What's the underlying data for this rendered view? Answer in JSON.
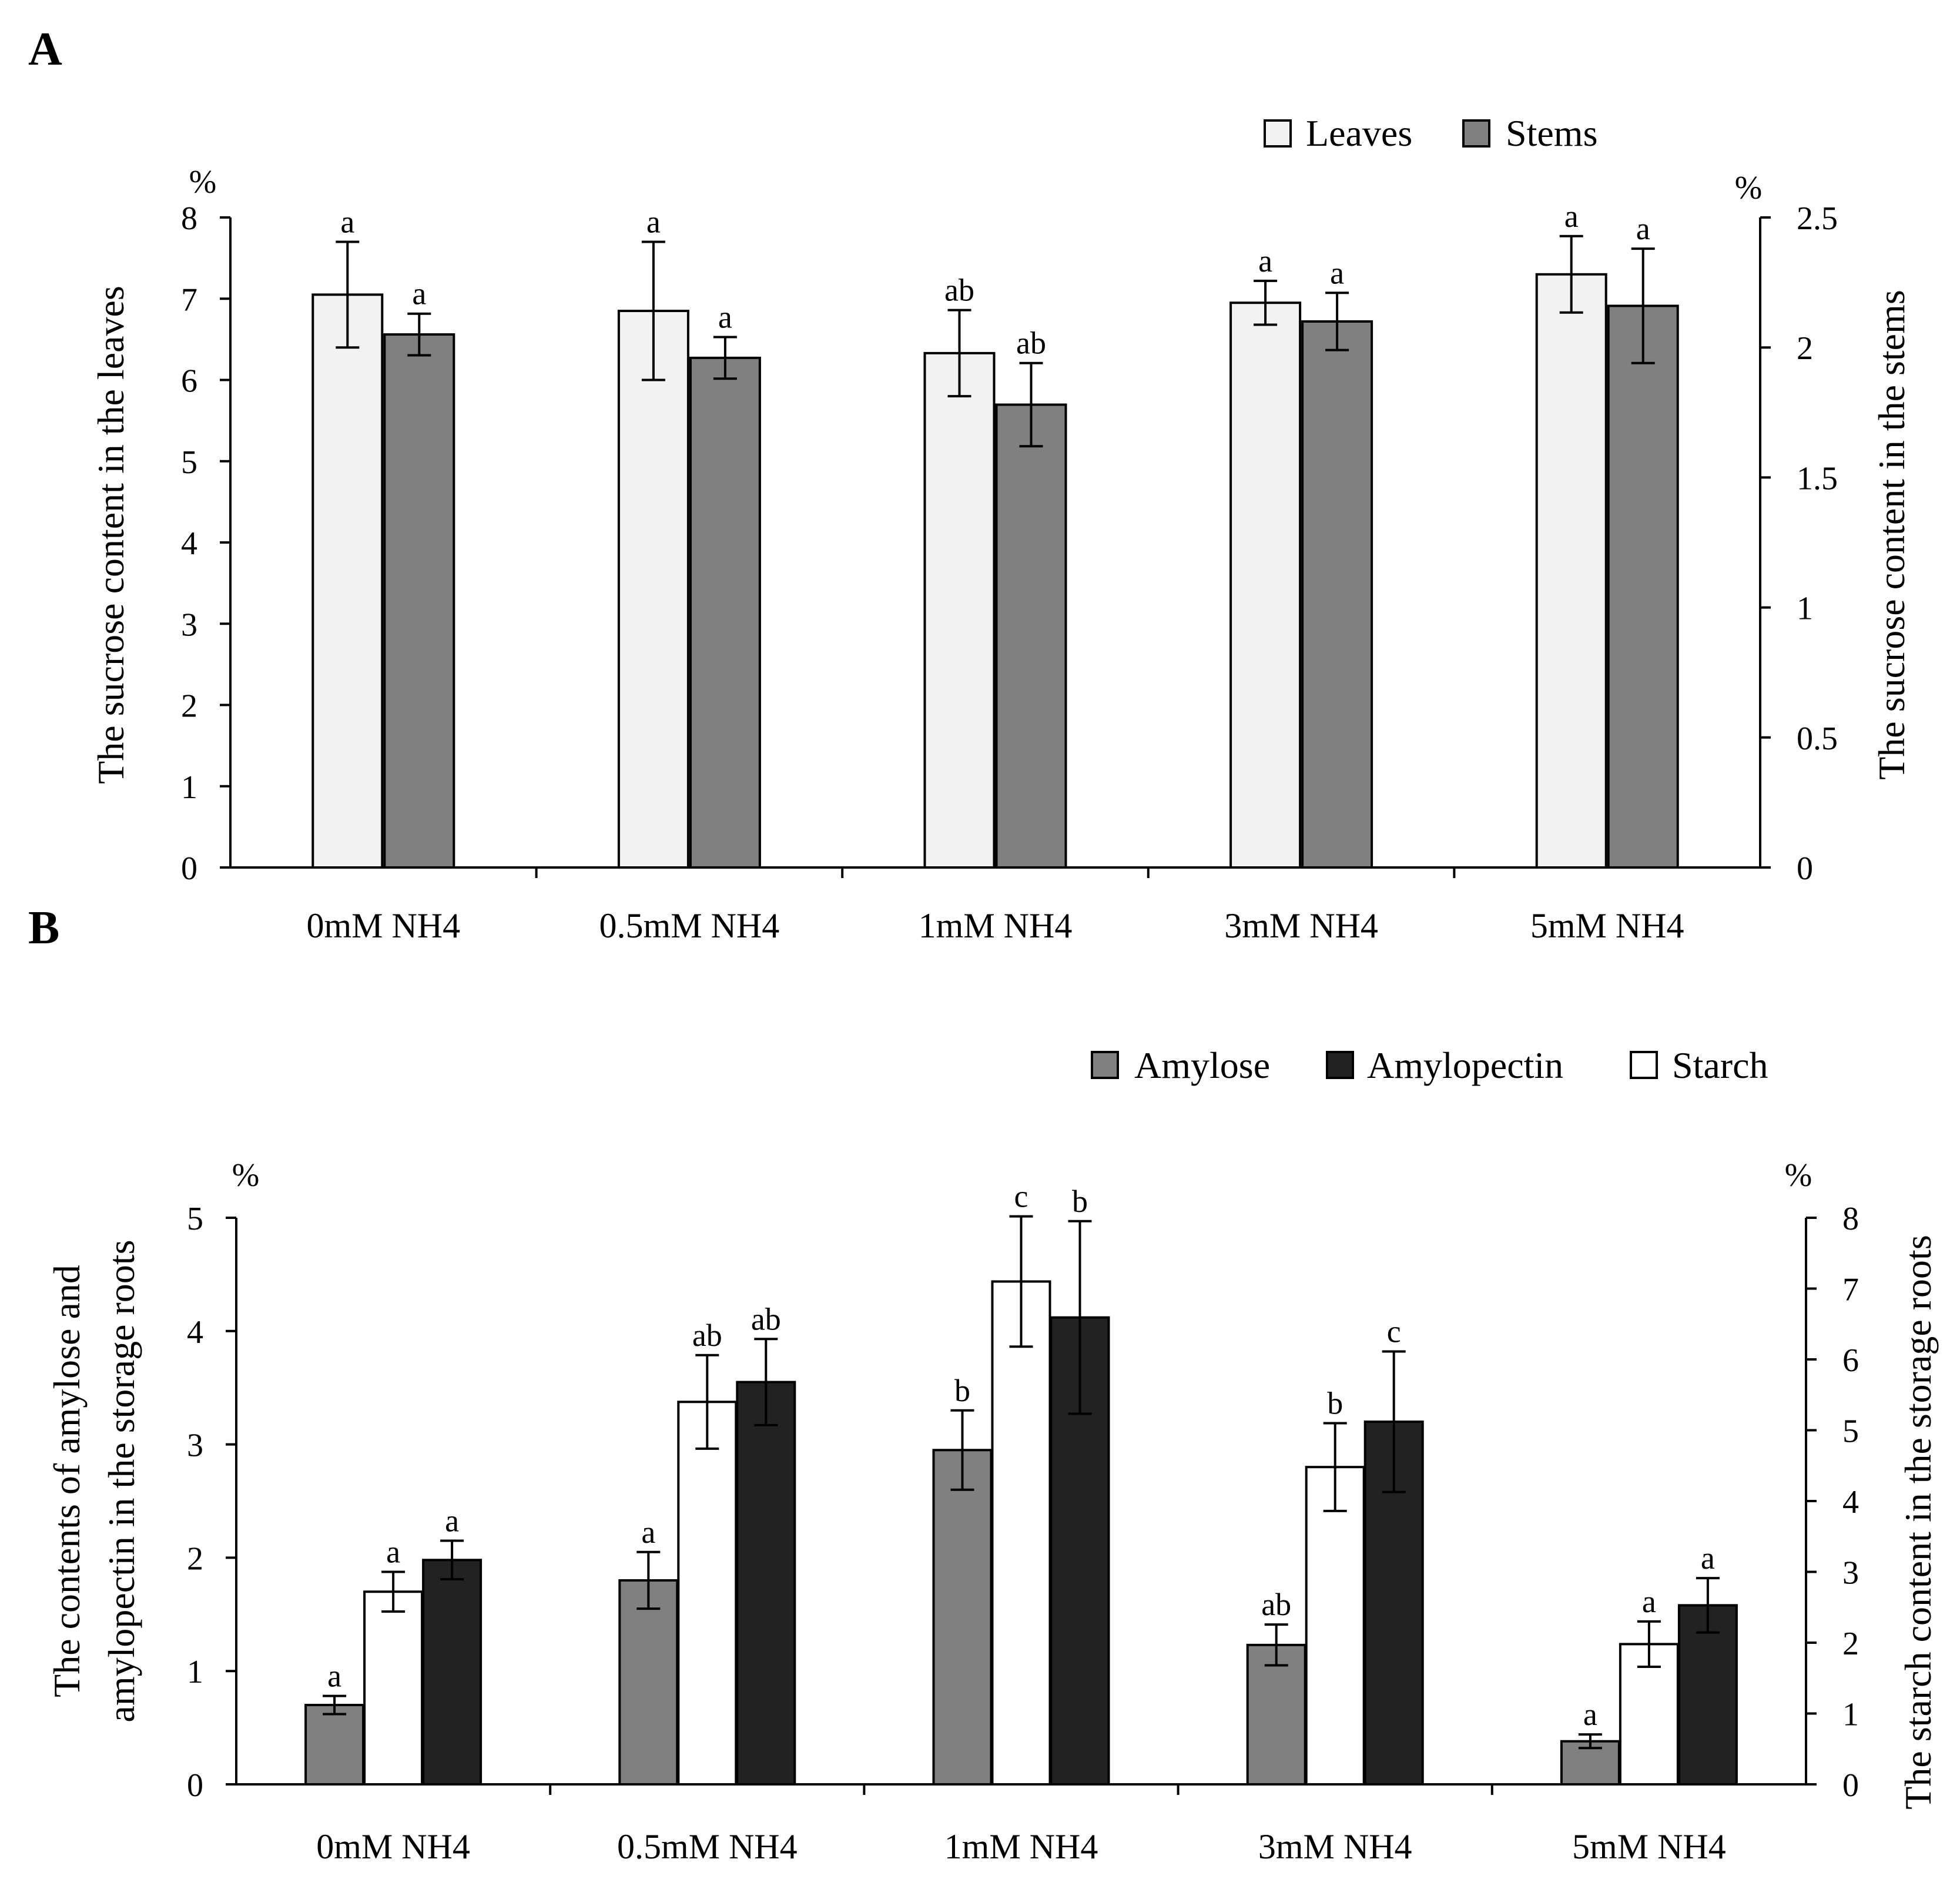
{
  "chart_data": [
    {
      "panel": "A",
      "type": "bar",
      "categories": [
        "0mM NH4",
        "0.5mM NH4",
        "1mM NH4",
        "3mM NH4",
        "5mM NH4"
      ],
      "left_axis": {
        "label": "The sucrose content in the leaves",
        "unit": "%",
        "ylim": [
          0,
          8
        ],
        "ticks": [
          "0",
          "1",
          "2",
          "3",
          "4",
          "5",
          "6",
          "7",
          "8"
        ]
      },
      "right_axis": {
        "label": "The sucrose content in the stems",
        "unit": "%",
        "ylim": [
          0,
          2.5
        ],
        "ticks": [
          "0",
          "0.5",
          "1",
          "1.5",
          "2",
          "2.5"
        ]
      },
      "series": [
        {
          "name": "Leaves",
          "axis": "left",
          "color": "#f2f2f2",
          "values": [
            7.05,
            6.85,
            6.33,
            6.95,
            7.3
          ],
          "errors": [
            0.65,
            0.85,
            0.53,
            0.27,
            0.47
          ],
          "letters": [
            "a",
            "a",
            "ab",
            "a",
            "a"
          ]
        },
        {
          "name": "Stems",
          "axis": "right",
          "color": "#808080",
          "values": [
            2.05,
            1.96,
            1.78,
            2.1,
            2.16
          ],
          "errors": [
            0.08,
            0.08,
            0.16,
            0.11,
            0.22
          ],
          "letters": [
            "a",
            "a",
            "ab",
            "a",
            "a"
          ]
        }
      ]
    },
    {
      "panel": "B",
      "type": "bar",
      "categories": [
        "0mM NH4",
        "0.5mM NH4",
        "1mM NH4",
        "3mM NH4",
        "5mM NH4"
      ],
      "left_axis": {
        "label_line1": "The contents of amylose and",
        "label_line2": "amylopectin in the storage roots",
        "unit": "%",
        "ylim": [
          0,
          5
        ],
        "ticks": [
          "0",
          "1",
          "2",
          "3",
          "4",
          "5"
        ]
      },
      "right_axis": {
        "label": "The starch content in the storage roots",
        "unit": "%",
        "ylim": [
          0,
          8
        ],
        "ticks": [
          "0",
          "1",
          "2",
          "3",
          "4",
          "5",
          "6",
          "7",
          "8"
        ]
      },
      "series": [
        {
          "name": "Amylose",
          "axis": "left",
          "color": "#808080",
          "values": [
            0.7,
            1.8,
            2.95,
            1.23,
            0.38
          ],
          "errors": [
            0.08,
            0.25,
            0.35,
            0.18,
            0.06
          ],
          "letters": [
            "a",
            "a",
            "b",
            "ab",
            "a"
          ]
        },
        {
          "name": "Starch",
          "axis": "right",
          "color": "#ffffff",
          "values": [
            2.72,
            5.4,
            7.1,
            4.48,
            1.98
          ],
          "errors": [
            0.28,
            0.66,
            0.92,
            0.62,
            0.32
          ],
          "letters": [
            "a",
            "ab",
            "c",
            "b",
            "a"
          ]
        },
        {
          "name": "Amylopectin",
          "axis": "left",
          "color": "#222222",
          "values": [
            1.98,
            3.55,
            4.12,
            3.2,
            1.58
          ],
          "errors": [
            0.17,
            0.38,
            0.85,
            0.62,
            0.24
          ],
          "letters": [
            "a",
            "ab",
            "b",
            "c",
            "a"
          ]
        }
      ],
      "legend_order": [
        "Amylose",
        "Amylopectin",
        "Starch"
      ]
    }
  ],
  "panel_labels": {
    "a": "A",
    "b": "B"
  }
}
